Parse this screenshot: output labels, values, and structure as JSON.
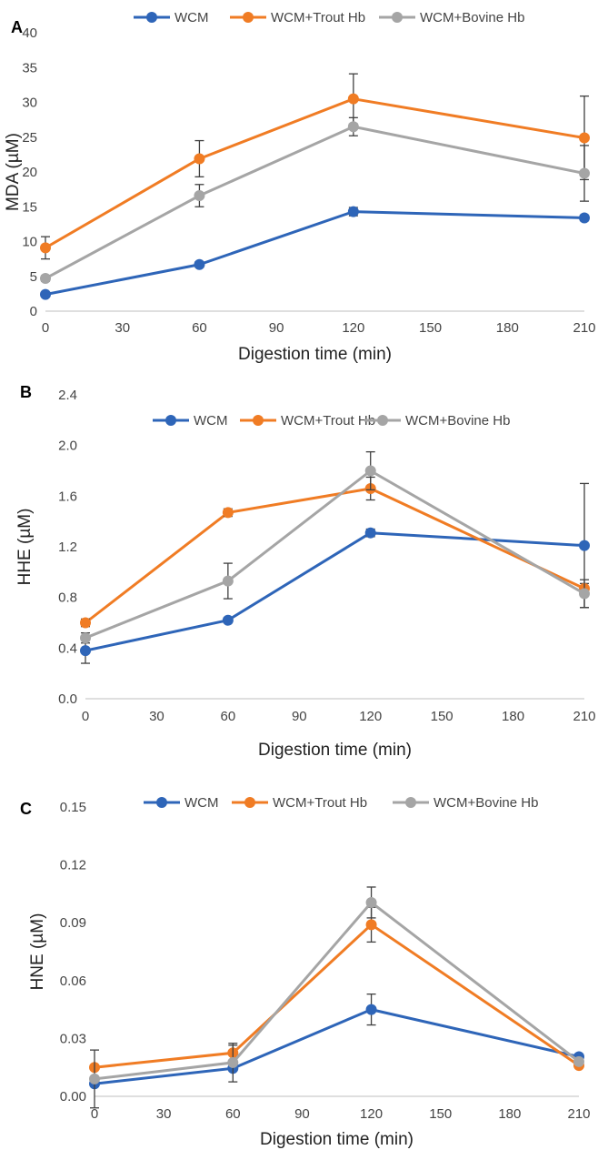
{
  "colors": {
    "WCM": "#2e65b8",
    "WCM+Trout Hb": "#f07c24",
    "WCM+Bovine Hb": "#a5a5a5"
  },
  "chart_data": [
    {
      "type": "line",
      "panel": "A",
      "xlabel": "Digestion time (min)",
      "ylabel": "MDA (µM)",
      "x": [
        0,
        60,
        120,
        210
      ],
      "xticks": [
        "0",
        "30",
        "60",
        "90",
        "120",
        "150",
        "180",
        "210"
      ],
      "xlim": [
        0,
        210
      ],
      "yticks": [
        "0",
        "5",
        "10",
        "15",
        "20",
        "25",
        "30",
        "35",
        "40"
      ],
      "ylim": [
        0,
        40
      ],
      "legend": "top",
      "grid": false,
      "series": [
        {
          "name": "WCM",
          "values": [
            2.4,
            6.7,
            14.3,
            13.4
          ],
          "errors": [
            0.3,
            0.4,
            0.6,
            0.4
          ]
        },
        {
          "name": "WCM+Trout Hb",
          "values": [
            9.1,
            21.9,
            30.5,
            24.9
          ],
          "errors": [
            1.6,
            2.6,
            3.6,
            6.0
          ]
        },
        {
          "name": "WCM+Bovine Hb",
          "values": [
            4.7,
            16.6,
            26.5,
            19.8
          ],
          "errors": [
            0.4,
            1.6,
            1.3,
            4.0
          ]
        }
      ]
    },
    {
      "type": "line",
      "panel": "B",
      "xlabel": "Digestion time (min)",
      "ylabel": "HHE (µM)",
      "x": [
        0,
        60,
        120,
        210
      ],
      "xticks": [
        "0",
        "30",
        "60",
        "90",
        "120",
        "150",
        "180",
        "210"
      ],
      "xlim": [
        0,
        210
      ],
      "yticks": [
        "0.0",
        "0.4",
        "0.8",
        "1.2",
        "1.6",
        "2.0",
        "2.4"
      ],
      "ylim": [
        0,
        2.4
      ],
      "legend": "top",
      "grid": false,
      "series": [
        {
          "name": "WCM",
          "values": [
            0.38,
            0.62,
            1.31,
            1.21
          ],
          "errors": [
            0.1,
            0.02,
            0.03,
            0.49
          ]
        },
        {
          "name": "WCM+Trout Hb",
          "values": [
            0.6,
            1.47,
            1.66,
            0.87
          ],
          "errors": [
            0.03,
            0.03,
            0.09,
            0.04
          ]
        },
        {
          "name": "WCM+Bovine Hb",
          "values": [
            0.48,
            0.93,
            1.8,
            0.83
          ],
          "errors": [
            0.04,
            0.14,
            0.15,
            0.11
          ]
        }
      ]
    },
    {
      "type": "line",
      "panel": "C",
      "xlabel": "Digestion time (min)",
      "ylabel": "HNE (µM)",
      "x": [
        0,
        60,
        120,
        210
      ],
      "xticks": [
        "0",
        "30",
        "60",
        "90",
        "120",
        "150",
        "180",
        "210"
      ],
      "xlim": [
        0,
        210
      ],
      "yticks": [
        "0.00",
        "0.03",
        "0.06",
        "0.09",
        "0.12",
        "0.15"
      ],
      "ylim": [
        0,
        0.15
      ],
      "legend": "top",
      "grid": false,
      "series": [
        {
          "name": "WCM",
          "values": [
            0.0065,
            0.0145,
            0.045,
            0.0205
          ],
          "errors": [
            0.0005,
            0.001,
            0.008,
            0.001
          ]
        },
        {
          "name": "WCM+Trout Hb",
          "values": [
            0.015,
            0.0225,
            0.089,
            0.016
          ],
          "errors": [
            0.001,
            0.004,
            0.009,
            0.001
          ]
        },
        {
          "name": "WCM+Bovine Hb",
          "values": [
            0.009,
            0.0175,
            0.1005,
            0.018
          ],
          "errors": [
            0.015,
            0.01,
            0.008,
            0.001
          ]
        }
      ]
    }
  ]
}
